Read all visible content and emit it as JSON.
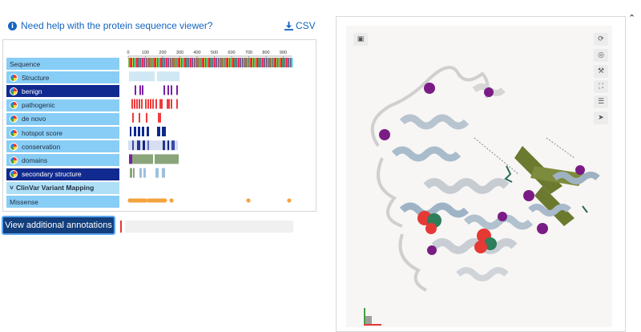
{
  "header": {
    "help_text": "Need help with the protein sequence viewer?",
    "csv_label": "CSV"
  },
  "axis": {
    "ticks": [
      "0",
      "100",
      "200",
      "300",
      "400",
      "500",
      "600",
      "700",
      "800",
      "900"
    ]
  },
  "tracks": [
    {
      "label": "Sequence",
      "style": "light",
      "icon": false
    },
    {
      "label": "Structure",
      "style": "light",
      "icon": true
    },
    {
      "label": "benign",
      "style": "dark",
      "icon": true
    },
    {
      "label": "pathogenic",
      "style": "light",
      "icon": true
    },
    {
      "label": "de novo",
      "style": "light",
      "icon": true
    },
    {
      "label": "hotspot score",
      "style": "light",
      "icon": true
    },
    {
      "label": "conservation",
      "style": "light",
      "icon": true
    },
    {
      "label": "domains",
      "style": "light",
      "icon": true
    },
    {
      "label": "secondary structure",
      "style": "dark",
      "icon": true
    },
    {
      "label": "ClinVar Variant Mapping",
      "style": "clinvar",
      "icon": false
    },
    {
      "label": "Missense",
      "style": "light",
      "icon": false
    }
  ],
  "view_button": "View additional annotations",
  "structure_viewer": {
    "controls": [
      "reset-icon",
      "focus-icon",
      "wrench-icon",
      "expand-icon",
      "settings-icon",
      "pointer-icon"
    ]
  },
  "colors": {
    "link": "#1565c0",
    "track_light": "#88cdf6",
    "track_dark": "#112a8f",
    "button": "#133e7c",
    "benign": "#7b1fa2",
    "pathogenic": "#e53935",
    "hotspot": "#0d2a8a",
    "domain": "#8aa57a",
    "missense": "#f4a340"
  }
}
